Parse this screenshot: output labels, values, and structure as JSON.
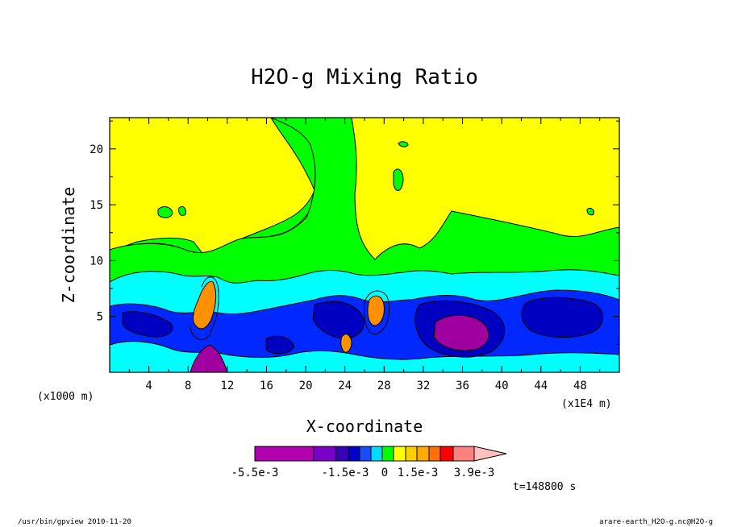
{
  "chart_data": {
    "type": "heatmap",
    "title": "H2O-g Mixing Ratio",
    "xlabel": "X-coordinate",
    "ylabel": "Z-coordinate",
    "x_unit_label": "(x1E4 m)",
    "z_unit_label": "(x1000 m)",
    "xlim": [
      0,
      52
    ],
    "ylim": [
      0,
      22.8
    ],
    "x_ticks": [
      4,
      8,
      12,
      16,
      20,
      24,
      28,
      32,
      36,
      40,
      44,
      48
    ],
    "y_ticks": [
      5,
      10,
      15,
      20
    ],
    "grid": false,
    "time_label": "t=148800 s",
    "colorbar": {
      "tick_labels": [
        "-5.5e-3",
        "-1.5e-3",
        "0",
        "1.5e-3",
        "3.9e-3"
      ],
      "colors": [
        "#b000b0",
        "#7a00c8",
        "#3a00b8",
        "#0000c8",
        "#1a4cff",
        "#00dcff",
        "#00ff00",
        "#ffff00",
        "#ffd000",
        "#ffaa00",
        "#ff7000",
        "#ff0000",
        "#ff8080",
        "#ffc0c0"
      ]
    },
    "regions": [
      {
        "level": "yellow",
        "description": "upper atmosphere above ~10 km"
      },
      {
        "level": "green",
        "description": "layer around 7-10 km and tongue near x=20-28"
      },
      {
        "level": "cyan",
        "description": "layer around 3-7 km"
      },
      {
        "level": "blue",
        "description": "lower layer 0-5 km"
      },
      {
        "level": "purple",
        "description": "minima near x=34-36, z=3-5 and x=9-10 near surface"
      },
      {
        "level": "orange",
        "description": "maxima near x=9-10 and x=26-27, z=4-7"
      }
    ]
  },
  "footer": {
    "left": "/usr/bin/gpview  2010-11-20",
    "right": "arare-earth_H2O-g.nc@H2O-g"
  },
  "colors": {
    "yellow": "#ffff00",
    "green": "#00ff00",
    "cyan": "#00ffff",
    "blue": "#0028ff",
    "navy": "#0000c0",
    "purple": "#a000a0",
    "violet": "#7000c0",
    "orange": "#ff9000"
  }
}
